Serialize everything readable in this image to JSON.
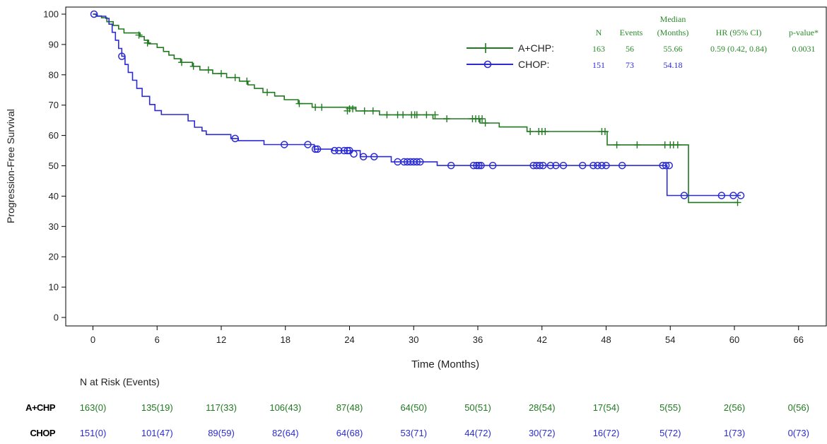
{
  "chart_data": {
    "type": "line",
    "chart_subtype": "kaplan-meier",
    "ylabel": "Progression-Free Survival",
    "xlabel": "Time (Months)",
    "xlim": [
      0,
      66
    ],
    "ylim": [
      0,
      100
    ],
    "x_ticks": [
      0,
      6,
      12,
      18,
      24,
      30,
      36,
      42,
      48,
      54,
      60,
      66
    ],
    "y_ticks": [
      0,
      10,
      20,
      30,
      40,
      50,
      60,
      70,
      80,
      90,
      100
    ],
    "grid": false,
    "legend_position": "top-right",
    "legend_table": {
      "header_top": "Median",
      "headers": [
        "N",
        "Events",
        "(Months)",
        "HR (95% CI)",
        "p-value*"
      ],
      "rows": [
        {
          "label": "A+CHP:",
          "n": "163",
          "events": "56",
          "median": "55.66",
          "hr": "0.59 (0.42, 0.84)",
          "p": "0.0031"
        },
        {
          "label": "CHOP:",
          "n": "151",
          "events": "73",
          "median": "54.18",
          "hr": "",
          "p": ""
        }
      ]
    },
    "series": [
      {
        "name": "A+CHP",
        "color": "#1f7a1f",
        "marker": "plus",
        "steps": [
          [
            0,
            100
          ],
          [
            0.3,
            99.4
          ],
          [
            0.8,
            98.8
          ],
          [
            1.3,
            97.5
          ],
          [
            1.9,
            96.3
          ],
          [
            2.4,
            95.1
          ],
          [
            2.9,
            93.8
          ],
          [
            4.4,
            92.6
          ],
          [
            4.8,
            91.4
          ],
          [
            5.2,
            90.2
          ],
          [
            6.0,
            89.0
          ],
          [
            6.6,
            87.7
          ],
          [
            7.1,
            86.5
          ],
          [
            7.6,
            85.3
          ],
          [
            8.2,
            84.1
          ],
          [
            9.3,
            82.8
          ],
          [
            10.0,
            81.6
          ],
          [
            11.2,
            80.4
          ],
          [
            12.5,
            79.1
          ],
          [
            13.7,
            77.9
          ],
          [
            14.5,
            76.7
          ],
          [
            15.1,
            75.5
          ],
          [
            15.9,
            74.2
          ],
          [
            17.0,
            73.0
          ],
          [
            17.9,
            71.8
          ],
          [
            19.2,
            70.5
          ],
          [
            20.5,
            69.3
          ],
          [
            24.6,
            68.1
          ],
          [
            26.8,
            66.8
          ],
          [
            31.8,
            65.5
          ],
          [
            36.2,
            64.1
          ],
          [
            38.0,
            62.8
          ],
          [
            40.6,
            61.3
          ],
          [
            48.1,
            56.9
          ],
          [
            55.7,
            37.9
          ],
          [
            60.3,
            37.9
          ]
        ],
        "censored": [
          [
            4.3,
            93.1
          ],
          [
            5.1,
            90.5
          ],
          [
            8.3,
            84.1
          ],
          [
            9.4,
            82.8
          ],
          [
            10.8,
            81.6
          ],
          [
            12.0,
            80.4
          ],
          [
            13.3,
            79.1
          ],
          [
            14.4,
            77.9
          ],
          [
            16.3,
            74.2
          ],
          [
            19.3,
            70.5
          ],
          [
            20.8,
            69.3
          ],
          [
            21.4,
            69.3
          ],
          [
            23.8,
            68.1
          ],
          [
            24.0,
            68.8
          ],
          [
            24.3,
            68.8
          ],
          [
            25.4,
            68.1
          ],
          [
            26.2,
            68.1
          ],
          [
            27.5,
            66.8
          ],
          [
            28.5,
            66.8
          ],
          [
            29.0,
            66.8
          ],
          [
            29.8,
            66.8
          ],
          [
            30.1,
            66.8
          ],
          [
            30.3,
            66.8
          ],
          [
            31.2,
            66.8
          ],
          [
            32.0,
            66.8
          ],
          [
            33.1,
            65.5
          ],
          [
            35.5,
            65.5
          ],
          [
            35.8,
            65.5
          ],
          [
            36.1,
            65.5
          ],
          [
            36.4,
            65.5
          ],
          [
            36.7,
            64.1
          ],
          [
            40.9,
            61.3
          ],
          [
            41.7,
            61.3
          ],
          [
            42.0,
            61.3
          ],
          [
            42.3,
            61.3
          ],
          [
            47.6,
            61.3
          ],
          [
            47.9,
            61.3
          ],
          [
            49.0,
            56.9
          ],
          [
            50.9,
            56.9
          ],
          [
            53.5,
            56.9
          ],
          [
            54.0,
            56.9
          ],
          [
            54.3,
            56.9
          ],
          [
            54.7,
            56.9
          ],
          [
            60.3,
            37.9
          ]
        ]
      },
      {
        "name": "CHOP",
        "color": "#2b2bd4",
        "marker": "circle",
        "steps": [
          [
            0,
            100
          ],
          [
            0.4,
            99.3
          ],
          [
            1.2,
            98.6
          ],
          [
            1.5,
            96.7
          ],
          [
            1.8,
            94.0
          ],
          [
            2.1,
            91.4
          ],
          [
            2.4,
            88.7
          ],
          [
            2.7,
            86.1
          ],
          [
            3.0,
            83.4
          ],
          [
            3.3,
            80.8
          ],
          [
            3.7,
            78.2
          ],
          [
            4.1,
            75.5
          ],
          [
            4.6,
            72.9
          ],
          [
            5.3,
            70.2
          ],
          [
            5.8,
            68.2
          ],
          [
            6.4,
            66.9
          ],
          [
            8.9,
            64.8
          ],
          [
            9.5,
            62.7
          ],
          [
            10.2,
            61.5
          ],
          [
            10.6,
            60.3
          ],
          [
            12.9,
            59.0
          ],
          [
            13.6,
            58.3
          ],
          [
            16.0,
            57.0
          ],
          [
            20.7,
            55.5
          ],
          [
            22.4,
            55.0
          ],
          [
            25.0,
            53.0
          ],
          [
            27.9,
            51.3
          ],
          [
            32.2,
            50.1
          ],
          [
            53.7,
            40.2
          ],
          [
            60.6,
            40.2
          ]
        ],
        "censored": [
          [
            0.1,
            100
          ],
          [
            2.7,
            86.1
          ],
          [
            13.3,
            59.0
          ],
          [
            17.9,
            57.0
          ],
          [
            20.1,
            57.0
          ],
          [
            20.8,
            55.5
          ],
          [
            21.0,
            55.5
          ],
          [
            22.6,
            55.0
          ],
          [
            23.0,
            55.0
          ],
          [
            23.5,
            55.0
          ],
          [
            23.8,
            55.0
          ],
          [
            24.0,
            55.0
          ],
          [
            24.4,
            53.9
          ],
          [
            25.3,
            53.0
          ],
          [
            26.3,
            53.0
          ],
          [
            28.5,
            51.3
          ],
          [
            29.1,
            51.3
          ],
          [
            29.4,
            51.3
          ],
          [
            29.7,
            51.3
          ],
          [
            30.0,
            51.3
          ],
          [
            30.3,
            51.3
          ],
          [
            30.6,
            51.3
          ],
          [
            33.5,
            50.1
          ],
          [
            35.6,
            50.1
          ],
          [
            35.9,
            50.1
          ],
          [
            36.1,
            50.1
          ],
          [
            36.3,
            50.1
          ],
          [
            37.4,
            50.1
          ],
          [
            41.2,
            50.1
          ],
          [
            41.5,
            50.1
          ],
          [
            41.8,
            50.1
          ],
          [
            42.1,
            50.1
          ],
          [
            42.8,
            50.1
          ],
          [
            43.3,
            50.1
          ],
          [
            44.0,
            50.1
          ],
          [
            45.8,
            50.1
          ],
          [
            46.8,
            50.1
          ],
          [
            47.2,
            50.1
          ],
          [
            47.6,
            50.1
          ],
          [
            48.0,
            50.1
          ],
          [
            49.5,
            50.1
          ],
          [
            53.3,
            50.1
          ],
          [
            53.6,
            50.1
          ],
          [
            53.9,
            50.1
          ],
          [
            55.3,
            40.2
          ],
          [
            58.8,
            40.2
          ],
          [
            59.9,
            40.2
          ],
          [
            60.6,
            40.2
          ]
        ]
      }
    ],
    "risk_table": {
      "title": "N at Risk (Events)",
      "rows": [
        {
          "label": "A+CHP",
          "color": "#1f7a1f",
          "values": [
            "163(0)",
            "135(19)",
            "117(33)",
            "106(43)",
            "87(48)",
            "64(50)",
            "50(51)",
            "28(54)",
            "17(54)",
            "5(55)",
            "2(56)",
            "0(56)"
          ]
        },
        {
          "label": "CHOP",
          "color": "#2b2bd4",
          "values": [
            "151(0)",
            "101(47)",
            "89(59)",
            "82(64)",
            "64(68)",
            "53(71)",
            "44(72)",
            "30(72)",
            "16(72)",
            "5(72)",
            "1(73)",
            "0(73)"
          ]
        }
      ]
    }
  }
}
